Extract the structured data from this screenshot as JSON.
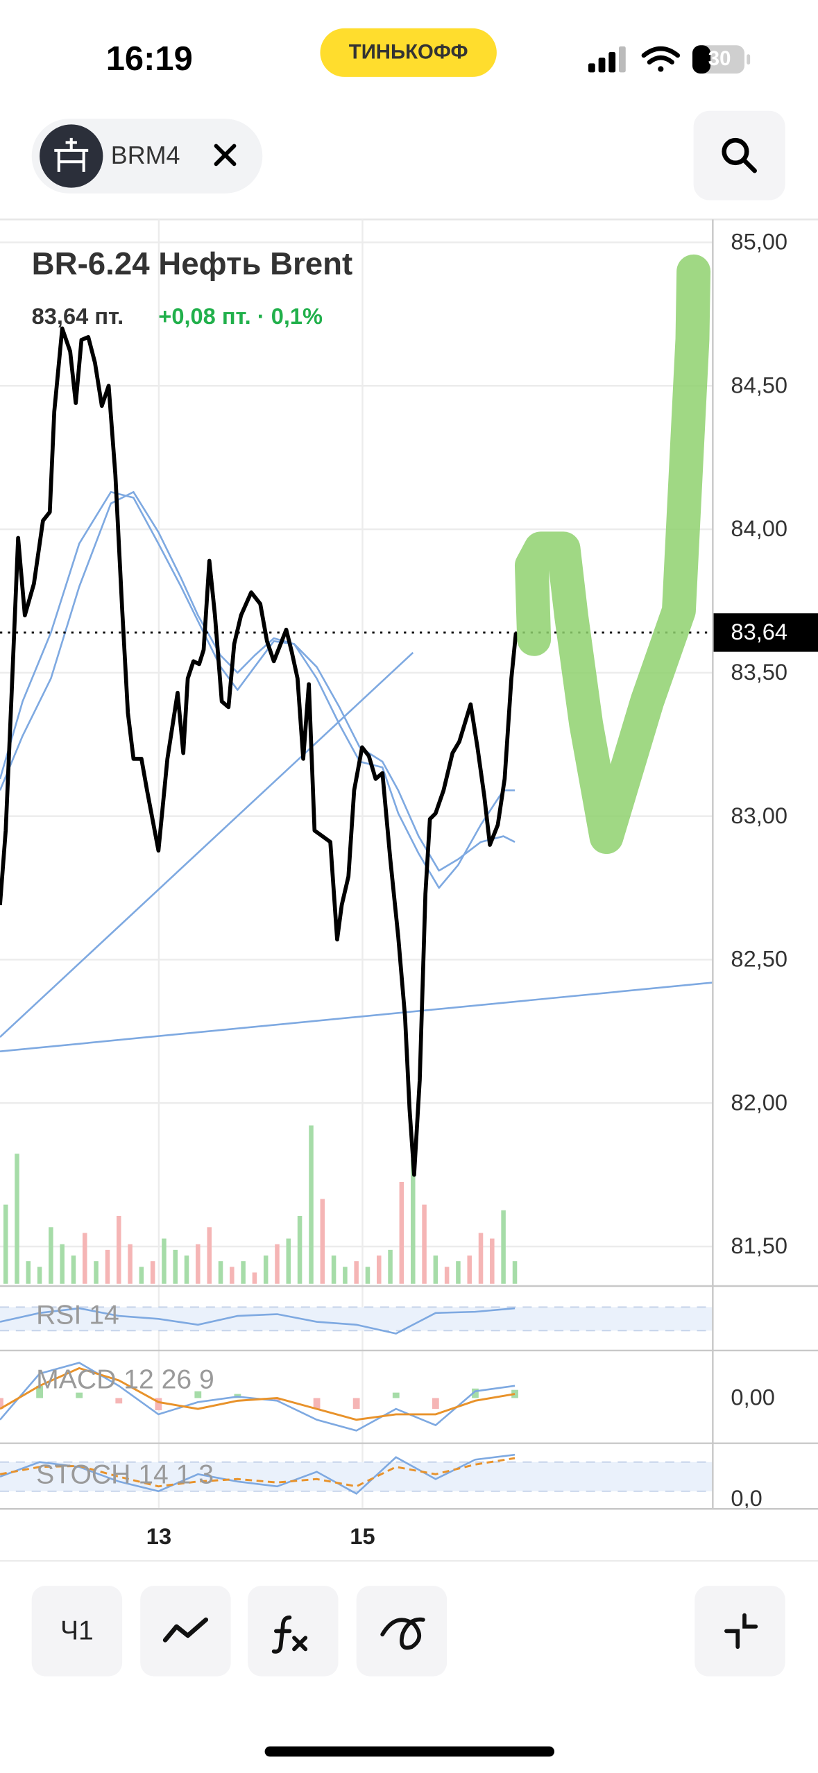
{
  "status_bar": {
    "time": "16:19",
    "brand": "ТИНЬКОФФ",
    "battery": "30"
  },
  "header": {
    "ticker": "BRM4"
  },
  "toolbar": {
    "interval": "Ч1"
  },
  "chart_data": {
    "type": "line",
    "title": "BR-6.24 Нефть Brent",
    "price_label": "83,64 пт.",
    "change_label": "+0,08 пт. · 0,1%",
    "xlim": [
      11.44,
      18.44
    ],
    "xticks": [
      13,
      15
    ],
    "ylim": [
      81.37,
      85.08
    ],
    "yticks": [
      {
        "value": 85,
        "label": "85,00"
      },
      {
        "value": 84.5,
        "label": "84,50"
      },
      {
        "value": 84,
        "label": "84,00"
      },
      {
        "value": 83.5,
        "label": "83,50"
      },
      {
        "value": 83,
        "label": "83,00"
      },
      {
        "value": 82.5,
        "label": "82,50"
      },
      {
        "value": 82,
        "label": "82,00"
      },
      {
        "value": 81.5,
        "label": "81,50"
      }
    ],
    "grid": true,
    "last": {
      "value": 83.64,
      "label": "83,64"
    },
    "series": [
      {
        "color": "#000000",
        "x": [
          11.44,
          11.496,
          11.551,
          11.618,
          11.684,
          11.773,
          11.862,
          11.929,
          11.973,
          12.051,
          12.129,
          12.184,
          12.24,
          12.307,
          12.373,
          12.44,
          12.507,
          12.573,
          12.64,
          12.696,
          12.751,
          12.829,
          12.884,
          12.996,
          13.084,
          13.184,
          13.24,
          13.284,
          13.34,
          13.396,
          13.44,
          13.496,
          13.551,
          13.618,
          13.684,
          13.74,
          13.807,
          13.907,
          13.996,
          14.062,
          14.129,
          14.196,
          14.251,
          14.307,
          14.362,
          14.418,
          14.473,
          14.529,
          14.607,
          14.684,
          14.751,
          14.796,
          14.862,
          14.918,
          14.996,
          15.062,
          15.129,
          15.196,
          15.273,
          15.351,
          15.418,
          15.462,
          15.507,
          15.562,
          15.618,
          15.662,
          15.718,
          15.796,
          15.884,
          15.951,
          16.062,
          16.129,
          16.196,
          16.251,
          16.329,
          16.396,
          16.462,
          16.507
        ],
        "values": [
          82.69,
          82.95,
          83.4,
          83.97,
          83.7,
          83.81,
          84.03,
          84.06,
          84.41,
          84.7,
          84.62,
          84.44,
          84.66,
          84.67,
          84.58,
          84.43,
          84.5,
          84.19,
          83.72,
          83.36,
          83.2,
          83.2,
          83.09,
          82.88,
          83.2,
          83.43,
          83.22,
          83.48,
          83.54,
          83.53,
          83.58,
          83.89,
          83.7,
          83.4,
          83.38,
          83.6,
          83.7,
          83.78,
          83.74,
          83.61,
          83.54,
          83.6,
          83.65,
          83.57,
          83.48,
          83.2,
          83.46,
          82.95,
          82.93,
          82.91,
          82.57,
          82.69,
          82.79,
          83.09,
          83.24,
          83.21,
          83.13,
          83.15,
          82.85,
          82.58,
          82.3,
          81.98,
          81.75,
          82.08,
          82.73,
          82.99,
          83.01,
          83.09,
          83.22,
          83.26,
          83.39,
          83.24,
          83.07,
          82.9,
          82.97,
          83.13,
          83.48,
          83.64
        ]
      },
      {
        "color": "#7ea9e1",
        "x": [
          11.44,
          11.662,
          11.94,
          12.218,
          12.529,
          12.751,
          12.996,
          13.218,
          13.384,
          13.607,
          13.773,
          13.94,
          14.129,
          14.329,
          14.551,
          14.773,
          14.973,
          15.196,
          15.351,
          15.551,
          15.751,
          15.94,
          16.162,
          16.384,
          16.496
        ],
        "values": [
          83.13,
          83.4,
          83.64,
          83.95,
          84.13,
          84.11,
          83.95,
          83.8,
          83.68,
          83.52,
          83.44,
          83.52,
          83.61,
          83.6,
          83.48,
          83.32,
          83.19,
          83.17,
          83.01,
          82.87,
          82.75,
          82.83,
          82.97,
          83.09,
          83.09
        ]
      },
      {
        "color": "#7ea9e1",
        "x": [
          11.44,
          11.662,
          11.94,
          12.218,
          12.529,
          12.751,
          12.996,
          13.218,
          13.384,
          13.607,
          13.773,
          13.94,
          14.129,
          14.329,
          14.551,
          14.773,
          14.973,
          15.196,
          15.351,
          15.551,
          15.751,
          15.94,
          16.162,
          16.384,
          16.496
        ],
        "values": [
          83.09,
          83.28,
          83.48,
          83.8,
          84.09,
          84.13,
          83.99,
          83.83,
          83.7,
          83.56,
          83.5,
          83.56,
          83.62,
          83.6,
          83.52,
          83.38,
          83.24,
          83.19,
          83.09,
          82.93,
          82.81,
          82.85,
          82.91,
          82.93,
          82.91
        ]
      }
    ],
    "trend_lines": [
      {
        "color": "#7ea9e1",
        "x": [
          11.44,
          15.496
        ],
        "values": [
          82.23,
          83.57
        ]
      },
      {
        "color": "#7ea9e1",
        "x": [
          11.44,
          18.44
        ],
        "values": [
          82.18,
          82.42
        ]
      }
    ],
    "volume": {
      "x": [
        11.496,
        11.607,
        11.718,
        11.829,
        11.94,
        12.051,
        12.162,
        12.273,
        12.384,
        12.496,
        12.607,
        12.718,
        12.829,
        12.94,
        13.051,
        13.162,
        13.273,
        13.384,
        13.496,
        13.607,
        13.718,
        13.829,
        13.94,
        14.051,
        14.162,
        14.273,
        14.384,
        14.496,
        14.607,
        14.718,
        14.829,
        14.94,
        15.051,
        15.162,
        15.273,
        15.384,
        15.496,
        15.607,
        15.718,
        15.829,
        15.94,
        16.051,
        16.162,
        16.273,
        16.384,
        16.496
      ],
      "values": [
        70,
        115,
        20,
        15,
        50,
        35,
        25,
        45,
        20,
        30,
        60,
        35,
        15,
        20,
        40,
        30,
        25,
        35,
        50,
        20,
        15,
        20,
        10,
        25,
        35,
        40,
        60,
        140,
        75,
        25,
        15,
        20,
        15,
        25,
        30,
        90,
        110,
        70,
        25,
        15,
        20,
        25,
        45,
        40,
        65,
        20
      ],
      "colors": [
        "#a6dca8",
        "#a6dca8",
        "#a6dca8",
        "#a6dca8",
        "#a6dca8",
        "#a6dca8",
        "#a6dca8",
        "#f5b5b5",
        "#a6dca8",
        "#f5b5b5",
        "#f5b5b5",
        "#f5b5b5",
        "#a6dca8",
        "#f5b5b5",
        "#a6dca8",
        "#a6dca8",
        "#a6dca8",
        "#f5b5b5",
        "#f5b5b5",
        "#a6dca8",
        "#f5b5b5",
        "#a6dca8",
        "#f5b5b5",
        "#a6dca8",
        "#f5b5b5",
        "#a6dca8",
        "#a6dca8",
        "#a6dca8",
        "#f5b5b5",
        "#a6dca8",
        "#a6dca8",
        "#f5b5b5",
        "#a6dca8",
        "#f5b5b5",
        "#a6dca8",
        "#f5b5b5",
        "#a6dca8",
        "#f5b5b5",
        "#a6dca8",
        "#f5b5b5",
        "#a6dca8",
        "#f5b5b5",
        "#f5b5b5",
        "#f5b5b5",
        "#a6dca8",
        "#a6dca8"
      ]
    },
    "indicators": {
      "x": [
        11.44,
        11.829,
        12.218,
        12.607,
        12.996,
        13.384,
        13.773,
        14.162,
        14.551,
        14.94,
        15.329,
        15.718,
        16.107,
        16.496
      ],
      "rsi": {
        "label": "RSI 14",
        "ylim": [
          0,
          100
        ],
        "band": [
          30,
          70
        ],
        "color": "#7ea9e1",
        "values": [
          45,
          60,
          68,
          55,
          50,
          40,
          55,
          58,
          45,
          40,
          25,
          60,
          62,
          68
        ]
      },
      "macd": {
        "label": "MACD 12 26 9",
        "ylim": [
          -0.3,
          0.3
        ],
        "yticks": [
          {
            "value": 0,
            "label": "0,00"
          }
        ],
        "macd_color": "#7ea9e1",
        "signal_color": "#e8922a",
        "macd": [
          -0.16,
          0.18,
          0.26,
          0.09,
          -0.12,
          -0.03,
          0.01,
          -0.02,
          -0.16,
          -0.24,
          -0.08,
          -0.2,
          0.05,
          0.09
        ],
        "signal": [
          -0.08,
          0.09,
          0.22,
          0.13,
          -0.03,
          -0.08,
          -0.02,
          0,
          -0.08,
          -0.16,
          -0.12,
          -0.12,
          -0.02,
          0.03
        ],
        "histogram": [
          -0.08,
          0.09,
          0.04,
          -0.04,
          -0.09,
          0.05,
          0.03,
          -0.02,
          -0.08,
          -0.08,
          0.04,
          -0.08,
          0.07,
          0.06
        ]
      },
      "stoch": {
        "label": "STOCH 14 1 3",
        "ylim": [
          0,
          100
        ],
        "yticks": [
          {
            "value": 0,
            "label": "0,0"
          }
        ],
        "band": [
          20,
          80
        ],
        "k_color": "#7ea9e1",
        "d_color": "#e8922a",
        "k": [
          50,
          80,
          70,
          40,
          20,
          55,
          40,
          30,
          60,
          15,
          90,
          45,
          85,
          95
        ],
        "d": [
          55,
          70,
          72,
          50,
          30,
          40,
          45,
          38,
          45,
          30,
          70,
          55,
          75,
          88
        ]
      }
    }
  }
}
